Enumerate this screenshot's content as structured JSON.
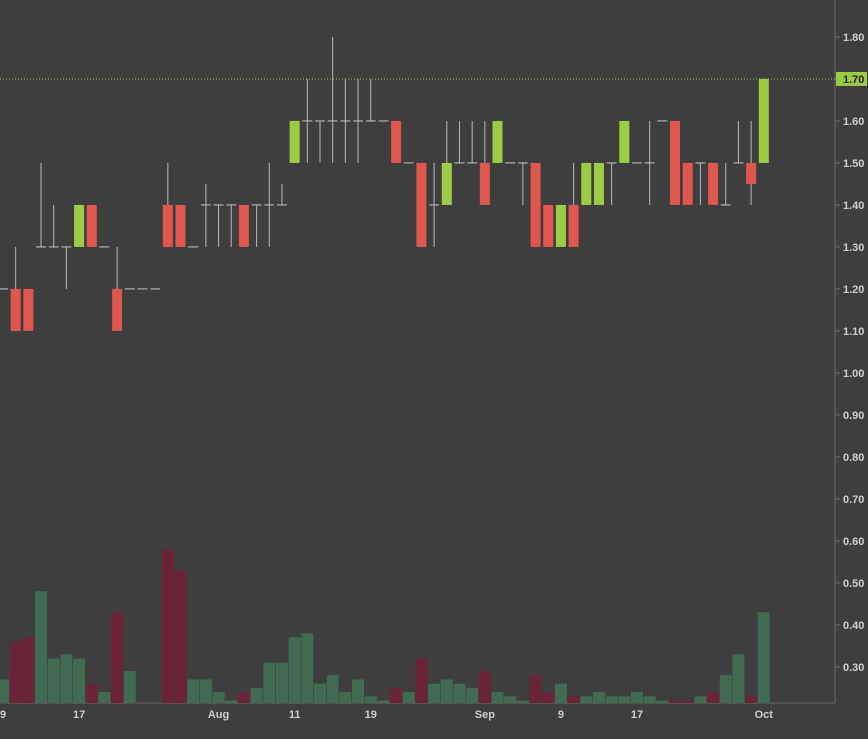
{
  "chart_data": {
    "type": "candlestick",
    "categories": [
      "9",
      null,
      null,
      null,
      null,
      null,
      "17",
      null,
      null,
      null,
      null,
      null,
      null,
      null,
      null,
      null,
      null,
      "Aug",
      null,
      null,
      null,
      null,
      null,
      "11",
      null,
      null,
      null,
      null,
      null,
      "19",
      null,
      null,
      null,
      null,
      null,
      null,
      null,
      null,
      "Sep",
      null,
      null,
      null,
      null,
      null,
      "9",
      null,
      null,
      null,
      null,
      null,
      "17",
      null,
      null,
      null,
      null,
      null,
      null,
      null,
      null,
      null,
      "Oct"
    ],
    "open": [
      1.2,
      1.2,
      1.2,
      1.3,
      1.3,
      1.3,
      1.3,
      1.4,
      1.3,
      1.2,
      1.2,
      1.2,
      1.2,
      1.4,
      1.4,
      1.3,
      1.4,
      1.4,
      1.4,
      1.4,
      1.4,
      1.4,
      1.4,
      1.5,
      1.6,
      1.6,
      1.6,
      1.6,
      1.6,
      1.6,
      1.6,
      1.6,
      1.5,
      1.5,
      1.4,
      1.4,
      1.5,
      1.5,
      1.5,
      1.5,
      1.5,
      1.5,
      1.5,
      1.4,
      1.3,
      1.4,
      1.4,
      1.4,
      1.5,
      1.5,
      1.5,
      1.5,
      1.6,
      1.6,
      1.5,
      1.5,
      1.5,
      1.4,
      1.5,
      1.5,
      1.5
    ],
    "high": [
      1.2,
      1.3,
      1.2,
      1.5,
      1.4,
      1.3,
      1.4,
      1.4,
      1.3,
      1.3,
      1.2,
      1.2,
      1.2,
      1.5,
      1.4,
      1.3,
      1.45,
      1.4,
      1.4,
      1.4,
      1.4,
      1.5,
      1.45,
      1.6,
      1.7,
      1.6,
      1.8,
      1.7,
      1.7,
      1.7,
      1.6,
      1.6,
      1.5,
      1.5,
      1.5,
      1.6,
      1.6,
      1.6,
      1.6,
      1.6,
      1.5,
      1.5,
      1.5,
      1.4,
      1.4,
      1.5,
      1.5,
      1.5,
      1.5,
      1.6,
      1.5,
      1.6,
      1.6,
      1.6,
      1.5,
      1.5,
      1.5,
      1.5,
      1.6,
      1.6,
      1.7
    ],
    "low": [
      1.2,
      1.1,
      1.1,
      1.3,
      1.3,
      1.2,
      1.3,
      1.3,
      1.3,
      1.1,
      1.2,
      1.2,
      1.2,
      1.3,
      1.3,
      1.3,
      1.3,
      1.3,
      1.3,
      1.3,
      1.3,
      1.3,
      1.4,
      1.5,
      1.5,
      1.5,
      1.5,
      1.5,
      1.5,
      1.6,
      1.6,
      1.5,
      1.5,
      1.3,
      1.3,
      1.4,
      1.5,
      1.5,
      1.4,
      1.5,
      1.5,
      1.4,
      1.3,
      1.3,
      1.3,
      1.3,
      1.4,
      1.4,
      1.4,
      1.5,
      1.5,
      1.4,
      1.6,
      1.4,
      1.4,
      1.4,
      1.4,
      1.4,
      1.5,
      1.4,
      1.5
    ],
    "close": [
      1.2,
      1.1,
      1.1,
      1.3,
      1.3,
      1.3,
      1.4,
      1.3,
      1.3,
      1.1,
      1.2,
      1.2,
      1.2,
      1.3,
      1.3,
      1.3,
      1.4,
      1.4,
      1.4,
      1.3,
      1.4,
      1.4,
      1.4,
      1.6,
      1.6,
      1.6,
      1.6,
      1.6,
      1.6,
      1.6,
      1.6,
      1.5,
      1.5,
      1.3,
      1.4,
      1.5,
      1.5,
      1.5,
      1.4,
      1.6,
      1.5,
      1.5,
      1.3,
      1.3,
      1.4,
      1.3,
      1.5,
      1.5,
      1.5,
      1.6,
      1.5,
      1.5,
      1.6,
      1.4,
      1.4,
      1.5,
      1.4,
      1.4,
      1.5,
      1.45,
      1.7
    ],
    "volume": [
      0.27,
      0.36,
      0.37,
      0.48,
      0.32,
      0.33,
      0.32,
      0.26,
      0.24,
      0.43,
      0.29,
      null,
      null,
      0.58,
      0.53,
      0.27,
      0.27,
      0.24,
      0.22,
      0.24,
      0.25,
      0.31,
      0.31,
      0.37,
      0.38,
      0.26,
      0.28,
      0.24,
      0.27,
      0.23,
      0.22,
      0.25,
      0.24,
      0.32,
      0.26,
      0.27,
      0.26,
      0.25,
      0.29,
      0.24,
      0.23,
      0.22,
      0.28,
      0.24,
      0.26,
      0.23,
      0.23,
      0.24,
      0.23,
      0.23,
      0.24,
      0.23,
      0.22,
      0.22,
      0.22,
      0.23,
      0.24,
      0.28,
      0.33,
      0.23,
      0.43
    ],
    "up_color": "#9ccc45",
    "down_color": "#e0574f",
    "volume_up_color": "#416b53",
    "volume_down_color": "#6b2437",
    "ylim": [
      0.214,
      1.888
    ],
    "yticks": [
      {
        "value": 0.3,
        "label": "0.30"
      },
      {
        "value": 0.4,
        "label": "0.40"
      },
      {
        "value": 0.5,
        "label": "0.50"
      },
      {
        "value": 0.6,
        "label": "0.60"
      },
      {
        "value": 0.7,
        "label": "0.70"
      },
      {
        "value": 0.8,
        "label": "0.80"
      },
      {
        "value": 0.9,
        "label": "0.90"
      },
      {
        "value": 1.0,
        "label": "1.00"
      },
      {
        "value": 1.1,
        "label": "1.10"
      },
      {
        "value": 1.2,
        "label": "1.20"
      },
      {
        "value": 1.3,
        "label": "1.30"
      },
      {
        "value": 1.4,
        "label": "1.40"
      },
      {
        "value": 1.5,
        "label": "1.50"
      },
      {
        "value": 1.6,
        "label": "1.60"
      },
      {
        "value": 1.7,
        "label": "1.70"
      },
      {
        "value": 1.8,
        "label": "1.80"
      }
    ],
    "last_price": {
      "value": 1.7,
      "label": "1.70"
    }
  }
}
